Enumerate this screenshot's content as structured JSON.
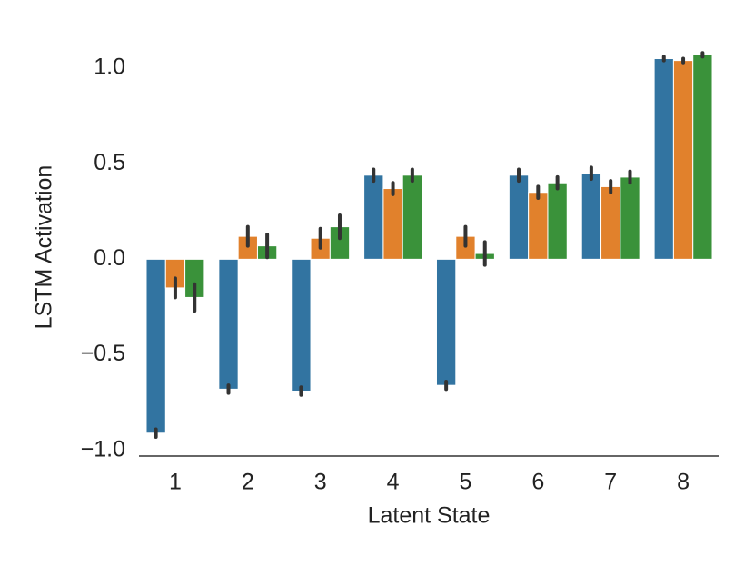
{
  "chart_data": {
    "type": "bar",
    "xlabel": "Latent State",
    "ylabel": "LSTM Activation",
    "categories": [
      "1",
      "2",
      "3",
      "4",
      "5",
      "6",
      "7",
      "8"
    ],
    "series": [
      {
        "color": "#3274a1",
        "values": [
          -0.91,
          -0.68,
          -0.69,
          0.44,
          -0.66,
          0.44,
          0.45,
          1.05
        ],
        "errors": [
          0.02,
          0.02,
          0.02,
          0.03,
          0.02,
          0.03,
          0.03,
          0.01
        ]
      },
      {
        "color": "#e1812c",
        "values": [
          -0.15,
          0.12,
          0.11,
          0.37,
          0.12,
          0.35,
          0.38,
          1.04
        ],
        "errors": [
          0.05,
          0.05,
          0.05,
          0.03,
          0.05,
          0.03,
          0.03,
          0.01
        ]
      },
      {
        "color": "#3a923a",
        "values": [
          -0.2,
          0.07,
          0.17,
          0.44,
          0.03,
          0.4,
          0.43,
          1.07
        ],
        "errors": [
          0.07,
          0.06,
          0.06,
          0.03,
          0.06,
          0.03,
          0.03,
          0.01
        ]
      }
    ],
    "ylim": [
      -1.03,
      1.1
    ],
    "yticks": [
      {
        "value": -1,
        "label": "−1.0"
      },
      {
        "value": -0.5,
        "label": "−0.5"
      },
      {
        "value": 0,
        "label": "0.0"
      },
      {
        "value": 0.5,
        "label": "0.5"
      },
      {
        "value": 1,
        "label": "1.0"
      }
    ],
    "errorbar_color": "#333333"
  }
}
